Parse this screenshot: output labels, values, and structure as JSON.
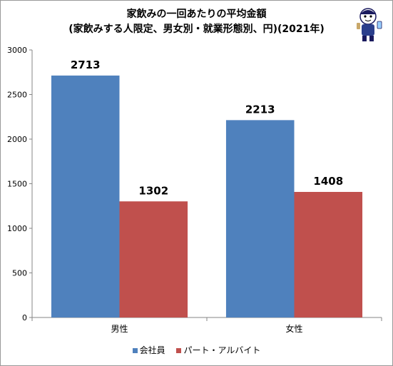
{
  "title_line1": "家飲みの一回あたりの平均金額",
  "title_line2": "(家飲みする人限定、男女別・就業形態別、円)(2021年)",
  "chart_data": {
    "type": "bar",
    "categories": [
      "男性",
      "女性"
    ],
    "series": [
      {
        "name": "会社員",
        "values": [
          2713,
          2213
        ],
        "color": "#4f81bd"
      },
      {
        "name": "パート・アルバイト",
        "values": [
          1302,
          1408
        ],
        "color": "#c0504d"
      }
    ],
    "ylim": [
      0,
      3000
    ],
    "yticks": [
      0,
      500,
      1000,
      1500,
      2000,
      2500,
      3000
    ],
    "grid": false,
    "legend_position": "bottom"
  }
}
